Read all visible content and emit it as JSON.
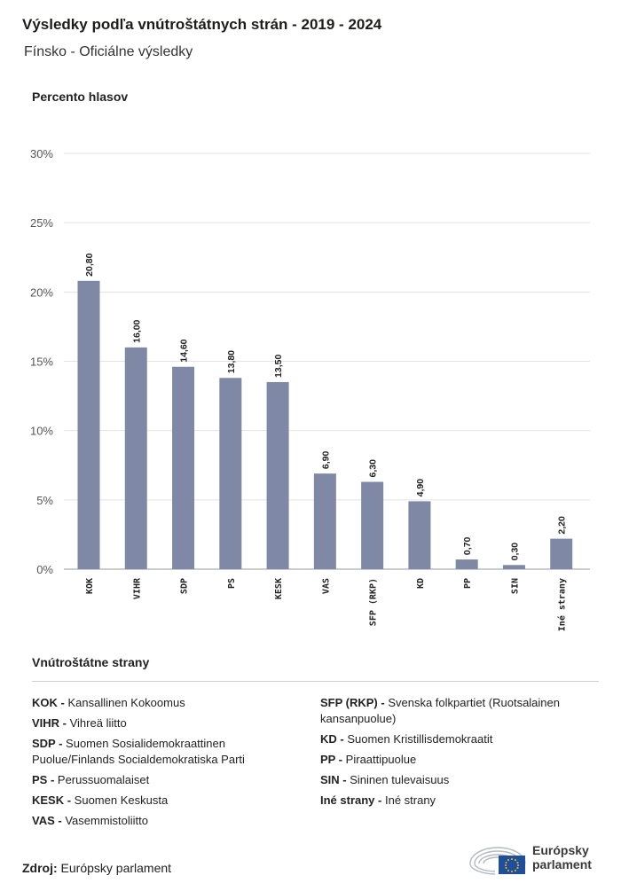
{
  "header": {
    "title": "Výsledky podľa vnútroštátnych strán - 2019 - 2024",
    "subtitle": "Fínsko - Oficiálne výsledky",
    "ylabel": "Percento hlasov"
  },
  "chart_data": {
    "type": "bar",
    "title": "Výsledky podľa vnútroštátnych strán - 2019 - 2024",
    "subtitle": "Fínsko - Oficiálne výsledky",
    "ylabel": "Percento hlasov",
    "categories": [
      "KOK",
      "VIHR",
      "SDP",
      "PS",
      "KESK",
      "VAS",
      "SFP (RKP)",
      "KD",
      "PP",
      "SIN",
      "Iné strany"
    ],
    "values": [
      20.8,
      16.0,
      14.6,
      13.8,
      13.5,
      6.9,
      6.3,
      4.9,
      0.7,
      0.3,
      2.2
    ],
    "value_labels": [
      "20,80",
      "16,00",
      "14,60",
      "13,80",
      "13,50",
      "6,90",
      "6,30",
      "4,90",
      "0,70",
      "0,30",
      "2,20"
    ],
    "ylim": [
      0,
      30
    ],
    "yticks": [
      "0%",
      "5%",
      "10%",
      "15%",
      "20%",
      "25%",
      "30%"
    ],
    "grid": true,
    "bar_color": "#7f89a6"
  },
  "legend": {
    "title": "Vnútroštátne strany",
    "left": [
      {
        "code": "KOK -",
        "name": "Kansallinen Kokoomus"
      },
      {
        "code": "VIHR -",
        "name": "Vihreä liitto"
      },
      {
        "code": "SDP -",
        "name": "Suomen Sosialidemokraattinen Puolue/Finlands Socialdemokratiska Parti"
      },
      {
        "code": "PS -",
        "name": "Perussuomalaiset"
      },
      {
        "code": "KESK -",
        "name": "Suomen Keskusta"
      },
      {
        "code": "VAS -",
        "name": "Vasemmistoliitto"
      }
    ],
    "right": [
      {
        "code": "SFP (RKP) -",
        "name": "Svenska folkpartiet (Ruotsalainen kansanpuolue)"
      },
      {
        "code": "KD -",
        "name": "Suomen Kristillisdemokraatit"
      },
      {
        "code": "PP -",
        "name": "Piraattipuolue"
      },
      {
        "code": "SIN -",
        "name": "Sininen tulevaisuus"
      },
      {
        "code": "Iné strany -",
        "name": "Iné strany"
      }
    ]
  },
  "footer": {
    "source_label": "Zdroj:",
    "source_value": "Európsky parlament",
    "logo_line1": "Európsky",
    "logo_line2": "parlament",
    "logo_icon": "european-parliament-hemicycle-eu-flag-icon"
  }
}
